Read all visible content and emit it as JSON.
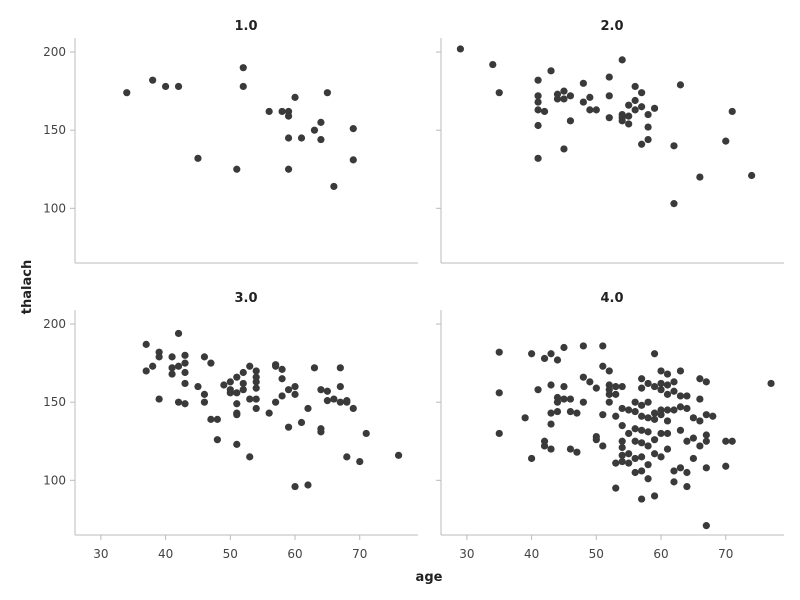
{
  "chart_data": {
    "type": "scatter",
    "xlabel": "age",
    "ylabel": "thalach",
    "xlim": [
      26,
      79
    ],
    "ylim": [
      65,
      209
    ],
    "xticks": [
      30,
      40,
      50,
      60,
      70
    ],
    "yticks": [
      100,
      150,
      200
    ],
    "grid": false,
    "color": "#3a3a3a",
    "facets": [
      {
        "title": "1.0",
        "points": [
          [
            34,
            174
          ],
          [
            38,
            182
          ],
          [
            40,
            178
          ],
          [
            42,
            178
          ],
          [
            45,
            132
          ],
          [
            51,
            125
          ],
          [
            52,
            190
          ],
          [
            52,
            178
          ],
          [
            56,
            162
          ],
          [
            58,
            162
          ],
          [
            59,
            162
          ],
          [
            59,
            159
          ],
          [
            59,
            145
          ],
          [
            59,
            125
          ],
          [
            60,
            171
          ],
          [
            61,
            145
          ],
          [
            63,
            150
          ],
          [
            64,
            155
          ],
          [
            64,
            144
          ],
          [
            65,
            174
          ],
          [
            66,
            114
          ],
          [
            69,
            151
          ],
          [
            69,
            131
          ]
        ]
      },
      {
        "title": "2.0",
        "points": [
          [
            29,
            202
          ],
          [
            34,
            192
          ],
          [
            35,
            174
          ],
          [
            41,
            182
          ],
          [
            41,
            172
          ],
          [
            41,
            168
          ],
          [
            41,
            163
          ],
          [
            41,
            153
          ],
          [
            41,
            132
          ],
          [
            42,
            162
          ],
          [
            43,
            188
          ],
          [
            44,
            173
          ],
          [
            44,
            170
          ],
          [
            45,
            175
          ],
          [
            45,
            170
          ],
          [
            45,
            138
          ],
          [
            46,
            172
          ],
          [
            46,
            156
          ],
          [
            48,
            180
          ],
          [
            48,
            168
          ],
          [
            49,
            171
          ],
          [
            49,
            163
          ],
          [
            50,
            163
          ],
          [
            52,
            184
          ],
          [
            52,
            172
          ],
          [
            52,
            158
          ],
          [
            54,
            195
          ],
          [
            54,
            160
          ],
          [
            54,
            158
          ],
          [
            54,
            156
          ],
          [
            55,
            166
          ],
          [
            55,
            159
          ],
          [
            55,
            154
          ],
          [
            56,
            178
          ],
          [
            56,
            169
          ],
          [
            56,
            163
          ],
          [
            57,
            174
          ],
          [
            57,
            165
          ],
          [
            57,
            141
          ],
          [
            58,
            160
          ],
          [
            58,
            152
          ],
          [
            58,
            144
          ],
          [
            59,
            164
          ],
          [
            62,
            140
          ],
          [
            62,
            103
          ],
          [
            63,
            179
          ],
          [
            66,
            120
          ],
          [
            70,
            143
          ],
          [
            71,
            162
          ],
          [
            74,
            121
          ]
        ]
      },
      {
        "title": "3.0",
        "points": [
          [
            37,
            187
          ],
          [
            37,
            170
          ],
          [
            38,
            173
          ],
          [
            39,
            182
          ],
          [
            39,
            179
          ],
          [
            39,
            152
          ],
          [
            41,
            179
          ],
          [
            41,
            172
          ],
          [
            41,
            168
          ],
          [
            42,
            194
          ],
          [
            42,
            173
          ],
          [
            42,
            150
          ],
          [
            43,
            180
          ],
          [
            43,
            175
          ],
          [
            43,
            169
          ],
          [
            43,
            162
          ],
          [
            43,
            149
          ],
          [
            45,
            160
          ],
          [
            46,
            179
          ],
          [
            46,
            155
          ],
          [
            46,
            150
          ],
          [
            47,
            175
          ],
          [
            47,
            139
          ],
          [
            48,
            139
          ],
          [
            48,
            126
          ],
          [
            49,
            161
          ],
          [
            50,
            163
          ],
          [
            50,
            158
          ],
          [
            50,
            156
          ],
          [
            51,
            166
          ],
          [
            51,
            156
          ],
          [
            51,
            149
          ],
          [
            51,
            143
          ],
          [
            51,
            142
          ],
          [
            51,
            123
          ],
          [
            52,
            169
          ],
          [
            52,
            162
          ],
          [
            52,
            158
          ],
          [
            53,
            173
          ],
          [
            53,
            152
          ],
          [
            53,
            115
          ],
          [
            54,
            170
          ],
          [
            54,
            166
          ],
          [
            54,
            163
          ],
          [
            54,
            159
          ],
          [
            54,
            152
          ],
          [
            54,
            146
          ],
          [
            56,
            143
          ],
          [
            57,
            174
          ],
          [
            57,
            173
          ],
          [
            57,
            150
          ],
          [
            58,
            171
          ],
          [
            58,
            165
          ],
          [
            58,
            154
          ],
          [
            59,
            158
          ],
          [
            59,
            134
          ],
          [
            60,
            160
          ],
          [
            60,
            155
          ],
          [
            60,
            96
          ],
          [
            61,
            137
          ],
          [
            62,
            146
          ],
          [
            62,
            97
          ],
          [
            63,
            172
          ],
          [
            64,
            158
          ],
          [
            64,
            133
          ],
          [
            64,
            131
          ],
          [
            65,
            157
          ],
          [
            65,
            151
          ],
          [
            66,
            152
          ],
          [
            67,
            172
          ],
          [
            67,
            160
          ],
          [
            67,
            150
          ],
          [
            68,
            151
          ],
          [
            68,
            150
          ],
          [
            68,
            115
          ],
          [
            69,
            146
          ],
          [
            70,
            112
          ],
          [
            71,
            130
          ],
          [
            76,
            116
          ]
        ]
      },
      {
        "title": "4.0",
        "points": [
          [
            35,
            182
          ],
          [
            35,
            156
          ],
          [
            35,
            130
          ],
          [
            39,
            140
          ],
          [
            40,
            181
          ],
          [
            40,
            114
          ],
          [
            41,
            158
          ],
          [
            42,
            178
          ],
          [
            42,
            125
          ],
          [
            42,
            122
          ],
          [
            43,
            181
          ],
          [
            43,
            161
          ],
          [
            43,
            143
          ],
          [
            43,
            136
          ],
          [
            43,
            120
          ],
          [
            44,
            177
          ],
          [
            44,
            153
          ],
          [
            44,
            144
          ],
          [
            44,
            150
          ],
          [
            45,
            185
          ],
          [
            45,
            152
          ],
          [
            45,
            160
          ],
          [
            46,
            144
          ],
          [
            46,
            152
          ],
          [
            46,
            120
          ],
          [
            47,
            143
          ],
          [
            47,
            118
          ],
          [
            48,
            186
          ],
          [
            48,
            166
          ],
          [
            48,
            150
          ],
          [
            49,
            163
          ],
          [
            50,
            159
          ],
          [
            50,
            128
          ],
          [
            50,
            126
          ],
          [
            51,
            186
          ],
          [
            51,
            173
          ],
          [
            51,
            142
          ],
          [
            51,
            122
          ],
          [
            52,
            170
          ],
          [
            52,
            161
          ],
          [
            52,
            158
          ],
          [
            52,
            155
          ],
          [
            52,
            150
          ],
          [
            53,
            160
          ],
          [
            53,
            155
          ],
          [
            53,
            141
          ],
          [
            53,
            111
          ],
          [
            53,
            95
          ],
          [
            54,
            160
          ],
          [
            54,
            146
          ],
          [
            54,
            135
          ],
          [
            54,
            125
          ],
          [
            54,
            121
          ],
          [
            54,
            116
          ],
          [
            54,
            112
          ],
          [
            55,
            145
          ],
          [
            55,
            130
          ],
          [
            55,
            117
          ],
          [
            55,
            111
          ],
          [
            56,
            150
          ],
          [
            56,
            144
          ],
          [
            56,
            133
          ],
          [
            56,
            125
          ],
          [
            56,
            114
          ],
          [
            56,
            105
          ],
          [
            57,
            165
          ],
          [
            57,
            159
          ],
          [
            57,
            148
          ],
          [
            57,
            141
          ],
          [
            57,
            132
          ],
          [
            57,
            124
          ],
          [
            57,
            115
          ],
          [
            57,
            106
          ],
          [
            57,
            88
          ],
          [
            58,
            162
          ],
          [
            58,
            150
          ],
          [
            58,
            140
          ],
          [
            58,
            131
          ],
          [
            58,
            122
          ],
          [
            58,
            110
          ],
          [
            58,
            101
          ],
          [
            59,
            181
          ],
          [
            59,
            160
          ],
          [
            59,
            143
          ],
          [
            59,
            139
          ],
          [
            59,
            126
          ],
          [
            59,
            117
          ],
          [
            59,
            90
          ],
          [
            60,
            170
          ],
          [
            60,
            162
          ],
          [
            60,
            158
          ],
          [
            60,
            145
          ],
          [
            60,
            142
          ],
          [
            60,
            130
          ],
          [
            60,
            115
          ],
          [
            61,
            168
          ],
          [
            61,
            161
          ],
          [
            61,
            155
          ],
          [
            61,
            145
          ],
          [
            61,
            138
          ],
          [
            61,
            130
          ],
          [
            61,
            120
          ],
          [
            62,
            163
          ],
          [
            62,
            157
          ],
          [
            62,
            145
          ],
          [
            62,
            106
          ],
          [
            62,
            99
          ],
          [
            63,
            170
          ],
          [
            63,
            154
          ],
          [
            63,
            147
          ],
          [
            63,
            132
          ],
          [
            63,
            108
          ],
          [
            64,
            154
          ],
          [
            64,
            146
          ],
          [
            64,
            125
          ],
          [
            64,
            105
          ],
          [
            64,
            96
          ],
          [
            65,
            140
          ],
          [
            65,
            127
          ],
          [
            65,
            114
          ],
          [
            66,
            165
          ],
          [
            66,
            152
          ],
          [
            66,
            138
          ],
          [
            66,
            122
          ],
          [
            67,
            163
          ],
          [
            67,
            142
          ],
          [
            67,
            129
          ],
          [
            67,
            125
          ],
          [
            67,
            108
          ],
          [
            67,
            71
          ],
          [
            68,
            141
          ],
          [
            70,
            125
          ],
          [
            70,
            109
          ],
          [
            71,
            125
          ],
          [
            77,
            162
          ]
        ]
      }
    ]
  }
}
